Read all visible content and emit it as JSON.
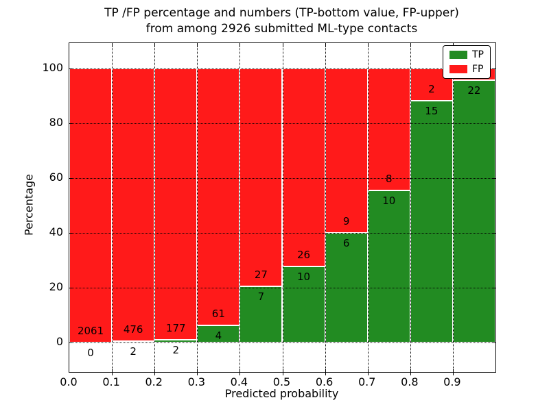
{
  "title": {
    "line1": "TP /FP percentage and numbers (TP-bottom value, FP-upper)",
    "line2": "from among 2926 submitted ML-type contacts"
  },
  "axes": {
    "xlabel": "Predicted probability",
    "ylabel": "Percentage",
    "x_tick_labels": [
      "0.0",
      "0.1",
      "0.2",
      "0.3",
      "0.4",
      "0.5",
      "0.6",
      "0.7",
      "0.8",
      "0.9"
    ],
    "y_tick_labels": [
      "0",
      "20",
      "40",
      "60",
      "80",
      "100"
    ],
    "y_tick_values": [
      0,
      20,
      40,
      60,
      80,
      100
    ]
  },
  "legend": {
    "items": [
      {
        "label": "TP",
        "color": "#228b22"
      },
      {
        "label": "FP",
        "color": "#ff1a1a"
      }
    ]
  },
  "colors": {
    "tp": "#228b22",
    "fp": "#ff1a1a",
    "grid": "#000000",
    "bar_edge": "#ffffff"
  },
  "chart_data": {
    "type": "bar",
    "stacked": true,
    "grid": true,
    "legend_position": "upper right",
    "title": "TP /FP percentage and numbers (TP-bottom value, FP-upper) from among 2926 submitted ML-type contacts",
    "xlabel": "Predicted probability",
    "ylabel": "Percentage",
    "total_contacts": 2926,
    "bin_edges": [
      0.0,
      0.1,
      0.2,
      0.3,
      0.4,
      0.5,
      0.6,
      0.7,
      0.8,
      0.9,
      1.0
    ],
    "series": [
      {
        "name": "TP",
        "counts": [
          0,
          2,
          2,
          4,
          7,
          10,
          6,
          10,
          15,
          22
        ],
        "count_labels": [
          "0",
          "2",
          "2",
          "4",
          "7",
          "10",
          "6",
          "10",
          "15",
          "22"
        ],
        "pct": [
          0.0,
          0.42,
          1.12,
          6.15,
          20.59,
          27.78,
          40.0,
          55.56,
          88.24,
          95.65
        ]
      },
      {
        "name": "FP",
        "count_labels": [
          "2061",
          "476",
          "177",
          "61",
          "27",
          "26",
          "9",
          "8",
          "2",
          ""
        ],
        "pct": [
          100.0,
          99.58,
          98.88,
          93.85,
          79.41,
          72.22,
          60.0,
          44.44,
          11.76,
          4.35
        ]
      }
    ],
    "ylim": [
      -10.75,
      109.25
    ],
    "xlim": [
      0,
      1
    ]
  }
}
